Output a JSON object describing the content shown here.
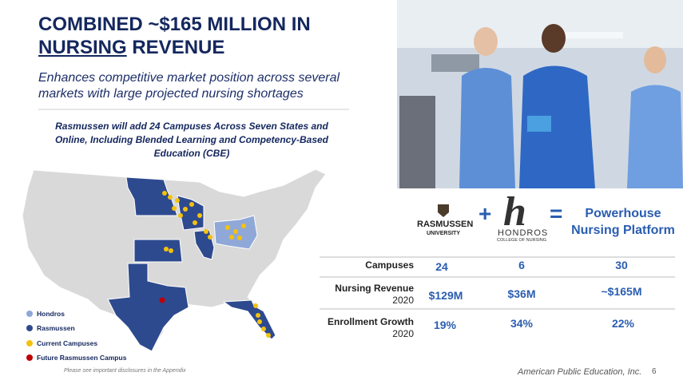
{
  "header": {
    "title_line1": "COMBINED ~$165 MILLION IN",
    "title_underlined": "NURSING",
    "title_rest": "REVENUE",
    "subtitle": "Enhances competitive market position across several markets with large projected nursing shortages"
  },
  "map": {
    "caption": "Rasmussen will add 24 Campuses Across Seven States and Online, Including Blended Learning and Competency-Based Education (CBE)",
    "legend": [
      "Hondros",
      "Rasmussen",
      "Current Campuses",
      "Future Rasmussen Campus"
    ]
  },
  "disclaimer": "Please see important disclosures in the Appendix",
  "logos": {
    "rasmussen": [
      "RASMUSSEN",
      "UNIVERSITY"
    ],
    "hondros_mark": "h",
    "hondros": [
      "HONDROS",
      "COLLEGE OF NURSING"
    ],
    "operators": [
      "+",
      "="
    ],
    "result": "Powerhouse Nursing Platform"
  },
  "table": {
    "rows": [
      {
        "label": "Campuses",
        "year": null,
        "cells": [
          "24",
          "6",
          "30"
        ]
      },
      {
        "label": "Nursing Revenue",
        "year": "2020",
        "cells": [
          "$129M",
          "$36M",
          "~$165M"
        ]
      },
      {
        "label": "Enrollment Growth",
        "year": "2020",
        "cells": [
          "19%",
          "34%",
          "22%"
        ]
      }
    ]
  },
  "footer": {
    "company": "American Public Education, Inc.",
    "page": "6"
  }
}
